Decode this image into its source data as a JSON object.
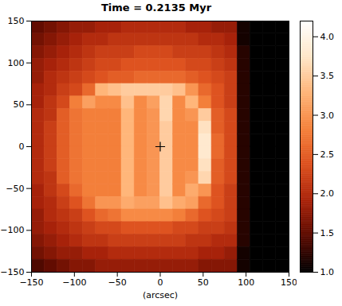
{
  "chart_data": {
    "type": "heatmap",
    "title": "Time = 0.2135 Myr",
    "xlabel": "(arcsec)",
    "xlim": [
      -150,
      150
    ],
    "ylim": [
      -150,
      150
    ],
    "xticks": [
      -150,
      -100,
      -50,
      0,
      50,
      100,
      150
    ],
    "yticks": [
      -150,
      -100,
      -50,
      0,
      50,
      100,
      150
    ],
    "x": [
      -142.5,
      -127.5,
      -112.5,
      -97.5,
      -82.5,
      -67.5,
      -52.5,
      -37.5,
      -22.5,
      -7.5,
      7.5,
      22.5,
      37.5,
      52.5,
      67.5,
      82.5,
      97.5,
      112.5,
      127.5,
      142.5
    ],
    "y": [
      142.5,
      127.5,
      112.5,
      97.5,
      82.5,
      67.5,
      52.5,
      37.5,
      22.5,
      7.5,
      -7.5,
      -22.5,
      -37.5,
      -52.5,
      -67.5,
      -82.5,
      -97.5,
      -112.5,
      -127.5,
      -142.5
    ],
    "values": [
      [
        1.5,
        1.6,
        1.7,
        1.8,
        1.8,
        1.9,
        1.9,
        2.0,
        2.0,
        2.0,
        2.0,
        2.0,
        1.9,
        1.9,
        1.8,
        1.8,
        1.1,
        1.0,
        1.0,
        1.0
      ],
      [
        1.6,
        1.7,
        1.8,
        1.9,
        2.0,
        2.0,
        2.1,
        2.1,
        2.1,
        2.1,
        2.1,
        2.1,
        2.1,
        2.0,
        2.0,
        1.9,
        1.1,
        1.0,
        1.0,
        1.0
      ],
      [
        1.7,
        1.8,
        1.9,
        2.0,
        2.1,
        2.2,
        2.2,
        2.2,
        2.3,
        2.3,
        2.3,
        2.2,
        2.2,
        2.2,
        2.1,
        2.0,
        1.2,
        1.0,
        1.0,
        1.0
      ],
      [
        1.8,
        1.9,
        2.0,
        2.1,
        2.2,
        2.3,
        2.3,
        2.4,
        2.4,
        2.4,
        2.4,
        2.4,
        2.3,
        2.3,
        2.2,
        2.1,
        1.2,
        1.0,
        1.0,
        1.0
      ],
      [
        1.8,
        2.0,
        2.1,
        2.2,
        2.3,
        2.4,
        2.5,
        2.5,
        2.6,
        2.6,
        2.6,
        2.6,
        2.5,
        2.4,
        2.3,
        2.2,
        1.2,
        1.0,
        1.0,
        1.0
      ],
      [
        1.9,
        2.0,
        2.2,
        2.3,
        2.6,
        3.3,
        3.4,
        3.5,
        3.5,
        3.5,
        3.5,
        3.4,
        3.0,
        2.6,
        2.4,
        2.2,
        1.2,
        1.0,
        1.0,
        1.0
      ],
      [
        1.9,
        2.1,
        2.3,
        2.8,
        3.1,
        2.9,
        2.9,
        3.4,
        2.9,
        3.1,
        3.6,
        2.9,
        3.3,
        2.8,
        2.4,
        2.2,
        1.2,
        1.0,
        1.0,
        1.0
      ],
      [
        2.0,
        2.1,
        2.5,
        2.7,
        2.8,
        2.8,
        2.8,
        3.3,
        2.9,
        3.0,
        3.6,
        2.9,
        3.0,
        3.5,
        2.5,
        2.3,
        1.2,
        1.0,
        1.0,
        1.0
      ],
      [
        2.0,
        2.2,
        2.5,
        2.7,
        2.8,
        2.8,
        2.8,
        3.3,
        2.9,
        3.0,
        3.5,
        2.9,
        2.9,
        3.7,
        2.5,
        2.3,
        1.2,
        1.0,
        1.0,
        1.0
      ],
      [
        2.0,
        2.2,
        2.5,
        2.7,
        2.8,
        2.8,
        2.8,
        3.3,
        2.9,
        3.0,
        3.5,
        2.9,
        2.9,
        3.8,
        2.6,
        2.3,
        1.2,
        1.0,
        1.0,
        1.0
      ],
      [
        2.0,
        2.2,
        2.5,
        2.7,
        2.8,
        2.8,
        2.8,
        3.3,
        2.9,
        3.0,
        3.5,
        2.9,
        2.9,
        3.8,
        2.6,
        2.3,
        1.2,
        1.0,
        1.0,
        1.0
      ],
      [
        2.0,
        2.2,
        2.5,
        2.7,
        2.8,
        2.8,
        2.8,
        3.3,
        2.9,
        3.0,
        3.5,
        2.9,
        2.9,
        3.7,
        2.5,
        2.3,
        1.2,
        1.0,
        1.0,
        1.0
      ],
      [
        2.0,
        2.1,
        2.5,
        2.7,
        2.8,
        2.8,
        2.8,
        3.3,
        2.9,
        3.0,
        3.5,
        2.9,
        3.0,
        3.6,
        2.5,
        2.3,
        1.2,
        1.0,
        1.0,
        1.0
      ],
      [
        1.9,
        2.1,
        2.3,
        2.6,
        2.8,
        2.8,
        2.8,
        3.3,
        2.9,
        3.0,
        3.5,
        2.9,
        3.2,
        3.0,
        2.4,
        2.2,
        1.2,
        1.0,
        1.0,
        1.0
      ],
      [
        1.9,
        2.0,
        2.2,
        2.4,
        2.7,
        3.0,
        3.0,
        3.2,
        3.1,
        3.1,
        3.4,
        3.2,
        3.1,
        2.6,
        2.4,
        2.2,
        1.2,
        1.0,
        1.0,
        1.0
      ],
      [
        1.8,
        2.0,
        2.1,
        2.2,
        2.4,
        2.6,
        2.7,
        2.9,
        2.9,
        2.9,
        2.9,
        2.8,
        2.6,
        2.4,
        2.3,
        2.2,
        1.2,
        1.0,
        1.0,
        1.0
      ],
      [
        1.8,
        1.9,
        2.0,
        2.1,
        2.2,
        2.3,
        2.3,
        2.4,
        2.4,
        2.4,
        2.4,
        2.3,
        2.3,
        2.2,
        2.2,
        2.1,
        1.2,
        1.0,
        1.0,
        1.0
      ],
      [
        1.7,
        1.8,
        1.9,
        2.0,
        2.1,
        2.1,
        2.2,
        2.2,
        2.2,
        2.2,
        2.2,
        2.2,
        2.1,
        2.1,
        2.0,
        2.0,
        1.2,
        1.0,
        1.0,
        1.0
      ],
      [
        1.6,
        1.7,
        1.8,
        1.8,
        1.9,
        1.9,
        2.0,
        2.0,
        2.0,
        2.0,
        2.0,
        2.0,
        2.0,
        1.9,
        1.9,
        1.8,
        1.1,
        1.0,
        1.0,
        1.0
      ],
      [
        1.4,
        1.5,
        1.6,
        1.7,
        1.7,
        1.8,
        1.8,
        1.8,
        1.8,
        1.8,
        1.8,
        1.8,
        1.8,
        1.7,
        1.7,
        1.7,
        1.1,
        1.0,
        1.0,
        1.0
      ]
    ],
    "markers": [
      {
        "x": 0,
        "y": 0,
        "marker": "plus"
      }
    ],
    "colorbar": {
      "range": [
        1.0,
        4.2
      ],
      "ticks": [
        {
          "value": 1,
          "label": "1.0"
        },
        1.5,
        {
          "value": 2,
          "label": "2.0"
        },
        2.5,
        {
          "value": 3,
          "label": "3.0"
        },
        3.5,
        {
          "value": 4,
          "label": "4.0"
        }
      ]
    }
  }
}
